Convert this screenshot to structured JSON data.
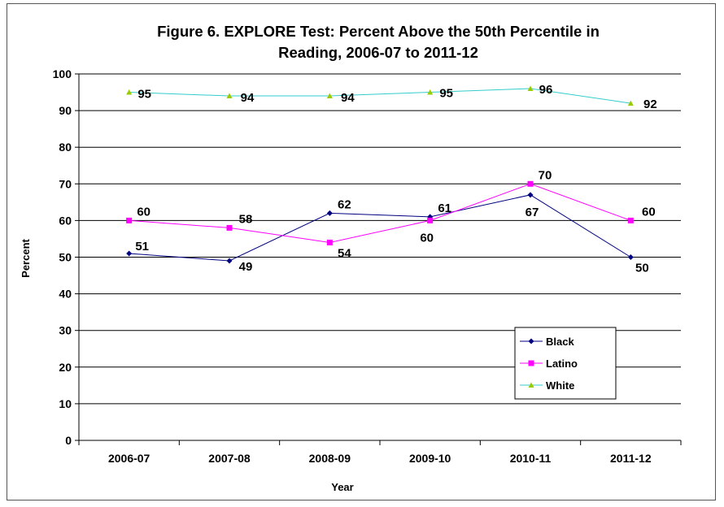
{
  "chart_data": {
    "type": "line",
    "title_line1": "Figure 6. EXPLORE Test: Percent Above the 50th Percentile in",
    "title_line2": "Reading, 2006-07 to 2011-12",
    "xlabel": "Year",
    "ylabel": "Percent",
    "categories": [
      "2006-07",
      "2007-08",
      "2008-09",
      "2009-10",
      "2010-11",
      "2011-12"
    ],
    "ylim": [
      0,
      100
    ],
    "yticks": [
      0,
      10,
      20,
      30,
      40,
      50,
      60,
      70,
      80,
      90,
      100
    ],
    "grid": true,
    "legend": "bottom-right",
    "series": [
      {
        "name": "Black",
        "values": [
          51,
          49,
          62,
          61,
          67,
          50
        ],
        "color": "#000080",
        "marker": "diamond",
        "labels": [
          "51",
          "49",
          "62",
          "61",
          "67",
          "50"
        ]
      },
      {
        "name": "Latino",
        "values": [
          60,
          58,
          54,
          60,
          70,
          60
        ],
        "color": "#ff00ff",
        "marker": "square",
        "labels": [
          "60",
          "58",
          "54",
          "60",
          "70",
          "60"
        ]
      },
      {
        "name": "White",
        "values": [
          95,
          94,
          94,
          95,
          96,
          92
        ],
        "color": "#33cccc",
        "marker": "triangle",
        "marker_color": "#99cc00",
        "labels": [
          "95",
          "94",
          "94",
          "95",
          "96",
          "92"
        ]
      }
    ]
  }
}
